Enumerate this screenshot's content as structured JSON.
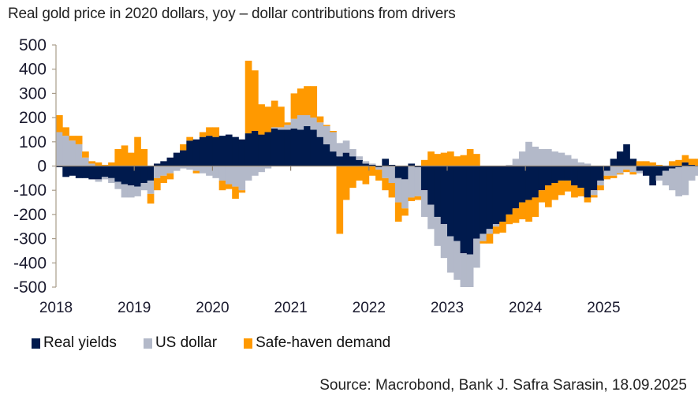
{
  "chart_data": {
    "type": "bar",
    "stacked": true,
    "title": "Real gold price in 2020 dollars, yoy – dollar contributions from drivers",
    "xlabel": "",
    "ylabel": "",
    "ylim": [
      -500,
      500
    ],
    "yticks": [
      "500",
      "400",
      "300",
      "200",
      "100",
      "0",
      "-100",
      "-200",
      "-300",
      "-400",
      "-500"
    ],
    "ytick_values": [
      500,
      400,
      300,
      200,
      100,
      0,
      -100,
      -200,
      -300,
      -400,
      -500
    ],
    "xticks": [
      "2018",
      "2019",
      "2020",
      "2021",
      "2022",
      "2023",
      "2024",
      "2025"
    ],
    "x_start": "2018-01",
    "frequency": "monthly",
    "grid": false,
    "legend_position": "bottom-left",
    "series": [
      {
        "name": "Real yields",
        "color": "#001a4d",
        "values": [
          -5,
          -45,
          -40,
          -50,
          -50,
          -55,
          -55,
          -45,
          -50,
          -65,
          -75,
          -80,
          -85,
          -70,
          -60,
          10,
          20,
          35,
          55,
          65,
          105,
          110,
          120,
          125,
          120,
          125,
          130,
          120,
          110,
          135,
          145,
          130,
          140,
          155,
          150,
          150,
          155,
          150,
          165,
          150,
          120,
          90,
          60,
          40,
          55,
          40,
          25,
          10,
          5,
          -5,
          30,
          5,
          -50,
          -55,
          10,
          -5,
          -100,
          -160,
          -210,
          -240,
          -290,
          -310,
          -360,
          -365,
          -300,
          -280,
          -260,
          -240,
          -230,
          -200,
          -175,
          -150,
          -140,
          -130,
          -100,
          -80,
          -70,
          -60,
          -60,
          -80,
          -90,
          -130,
          -100,
          -60,
          -20,
          30,
          60,
          90,
          30,
          -20,
          -40,
          -80,
          -40,
          -20,
          -10,
          -5,
          15,
          5,
          0,
          -5,
          -20
        ],
        "note": "approximate monthly contributions read from chart"
      },
      {
        "name": "US dollar",
        "color": "#b3b9c9",
        "values": [
          140,
          125,
          105,
          90,
          35,
          10,
          -10,
          -10,
          -20,
          -30,
          -55,
          -50,
          -40,
          -30,
          -55,
          -50,
          -40,
          -30,
          -20,
          -10,
          -15,
          -20,
          -30,
          -40,
          -50,
          -60,
          -75,
          -85,
          -100,
          -60,
          -40,
          -25,
          -10,
          5,
          10,
          20,
          40,
          60,
          45,
          50,
          60,
          75,
          80,
          55,
          50,
          30,
          15,
          10,
          5,
          -10,
          -50,
          -70,
          -100,
          -120,
          -130,
          -120,
          -110,
          -100,
          -120,
          -140,
          -150,
          -160,
          -140,
          -135,
          -120,
          -30,
          -20,
          -10,
          0,
          5,
          30,
          60,
          100,
          80,
          70,
          70,
          60,
          55,
          45,
          30,
          15,
          10,
          -20,
          -20,
          -20,
          -40,
          -30,
          -15,
          -25,
          -10,
          0,
          0,
          -20,
          -60,
          -90,
          -120,
          -120,
          -60,
          -40,
          -20,
          -10,
          20,
          35,
          40,
          40
        ],
        "note": "approximate monthly contributions read from chart"
      },
      {
        "name": "Safe-haven demand",
        "color": "#ff9900",
        "values": [
          70,
          35,
          20,
          35,
          25,
          10,
          15,
          5,
          15,
          70,
          85,
          55,
          120,
          70,
          -40,
          -50,
          -30,
          -25,
          0,
          25,
          15,
          -10,
          20,
          35,
          40,
          -40,
          -20,
          -50,
          -10,
          300,
          250,
          125,
          105,
          110,
          85,
          10,
          105,
          110,
          120,
          130,
          25,
          5,
          5,
          -280,
          -140,
          -90,
          -60,
          -75,
          -40,
          -45,
          -50,
          -60,
          -80,
          -30,
          -15,
          -15,
          25,
          60,
          50,
          55,
          60,
          40,
          45,
          70,
          50,
          -10,
          -40,
          -30,
          -45,
          -40,
          -60,
          -70,
          -90,
          -80,
          -50,
          -90,
          -70,
          -60,
          -45,
          -50,
          -35,
          -20,
          -10,
          -20,
          -15,
          -10,
          -5,
          -10,
          -10,
          20,
          20,
          15,
          5,
          0,
          20,
          25,
          30,
          25,
          30,
          60,
          120,
          60,
          40,
          10,
          -25
        ]
      }
    ]
  },
  "legend": {
    "items": [
      {
        "label": "Real yields",
        "color": "#001a4d"
      },
      {
        "label": "US dollar",
        "color": "#b3b9c9"
      },
      {
        "label": "Safe-haven demand",
        "color": "#ff9900"
      }
    ]
  },
  "source": "Source: Macrobond, Bank J. Safra Sarasin, 18.09.2025"
}
